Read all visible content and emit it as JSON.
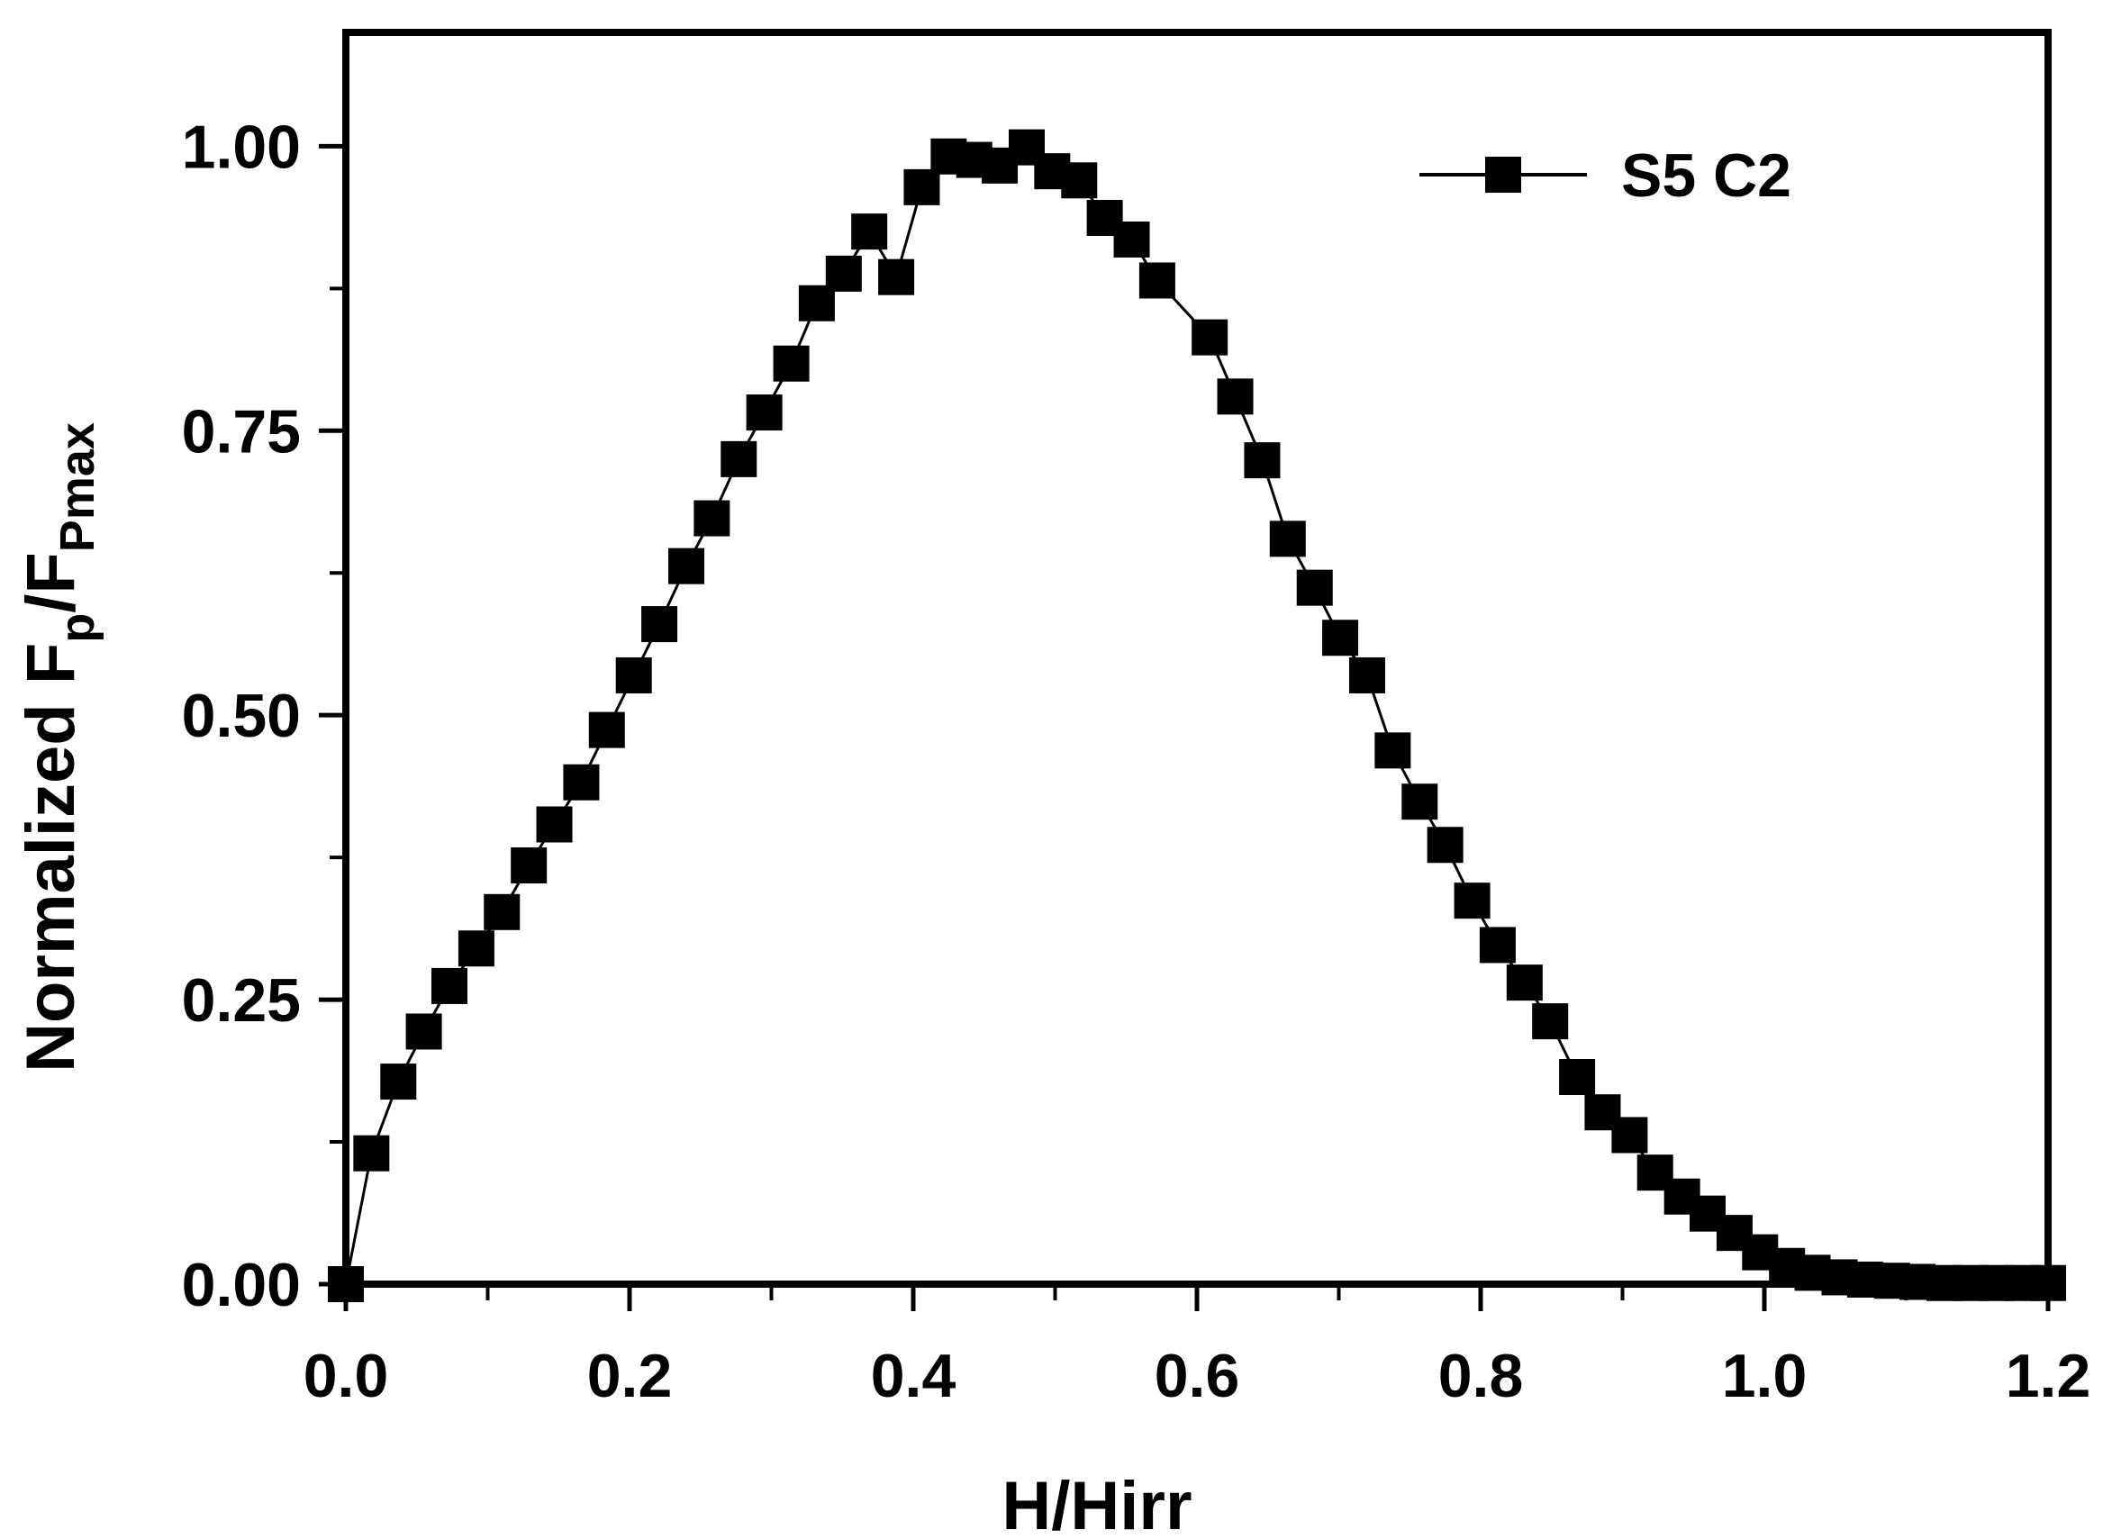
{
  "chart_data": {
    "type": "line",
    "xlabel": "H/Hirr",
    "ylabel": {
      "prefix": "Normalized F",
      "sub1": "p",
      "mid": "/F",
      "sub2": "Pmax"
    },
    "xlim": [
      0.0,
      1.2
    ],
    "ylim": [
      0.0,
      1.1
    ],
    "xticks": [
      "0.0",
      "0.2",
      "0.4",
      "0.6",
      "0.8",
      "1.0",
      "1.2"
    ],
    "yticks": [
      "0.00",
      "0.25",
      "0.50",
      "0.75",
      "1.00"
    ],
    "grid": false,
    "legend_position": "top-right",
    "series": [
      {
        "name": "S5 C2",
        "color": "#000000",
        "marker": "square",
        "x": [
          0.0,
          0.018,
          0.037,
          0.055,
          0.073,
          0.092,
          0.11,
          0.129,
          0.147,
          0.166,
          0.184,
          0.203,
          0.221,
          0.24,
          0.258,
          0.277,
          0.295,
          0.314,
          0.332,
          0.351,
          0.369,
          0.388,
          0.406,
          0.425,
          0.443,
          0.461,
          0.48,
          0.498,
          0.517,
          0.535,
          0.554,
          0.572,
          0.609,
          0.627,
          0.646,
          0.664,
          0.683,
          0.701,
          0.72,
          0.738,
          0.757,
          0.775,
          0.794,
          0.812,
          0.831,
          0.849,
          0.868,
          0.886,
          0.905,
          0.923,
          0.942,
          0.96,
          0.979,
          0.997,
          1.016,
          1.034,
          1.053,
          1.071,
          1.09,
          1.108,
          1.127,
          1.145,
          1.164,
          1.182,
          1.2
        ],
        "y": [
          0.0,
          0.115,
          0.178,
          0.222,
          0.262,
          0.295,
          0.327,
          0.368,
          0.404,
          0.441,
          0.487,
          0.535,
          0.58,
          0.631,
          0.673,
          0.725,
          0.766,
          0.809,
          0.862,
          0.888,
          0.925,
          0.885,
          0.964,
          0.991,
          0.988,
          0.983,
          0.999,
          0.978,
          0.97,
          0.937,
          0.918,
          0.882,
          0.832,
          0.78,
          0.724,
          0.655,
          0.612,
          0.568,
          0.535,
          0.469,
          0.424,
          0.386,
          0.337,
          0.298,
          0.265,
          0.231,
          0.182,
          0.151,
          0.131,
          0.098,
          0.077,
          0.062,
          0.045,
          0.028,
          0.016,
          0.01,
          0.006,
          0.004,
          0.003,
          0.002,
          0.001,
          0.001,
          0.001,
          0.001,
          0.001
        ]
      }
    ]
  }
}
